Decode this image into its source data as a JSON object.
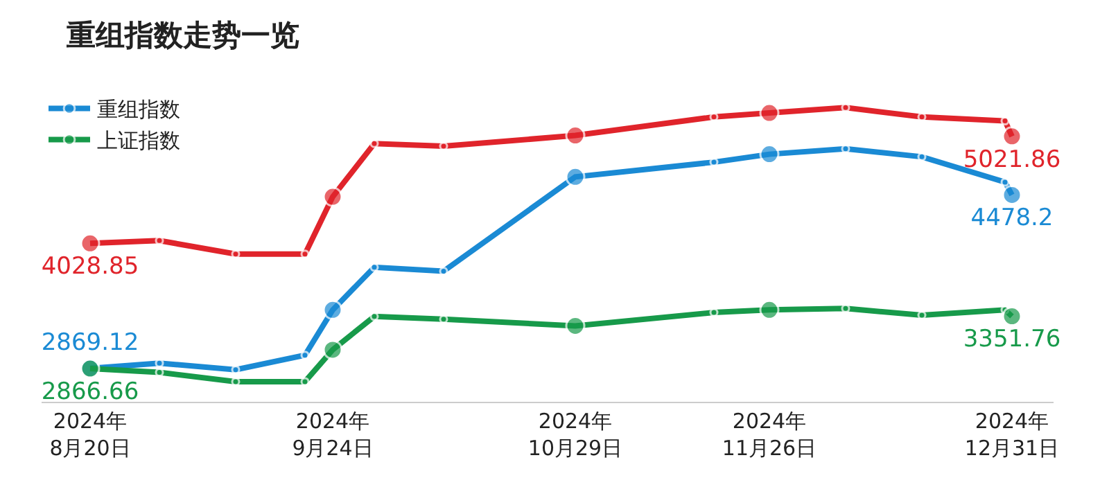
{
  "chart_data": {
    "type": "line",
    "title": "重组指数走势一览",
    "x": [
      "2024-08-20",
      "2024-08-30",
      "2024-09-10",
      "2024-09-20",
      "2024-09-24",
      "2024-09-30",
      "2024-10-10",
      "2024-10-29",
      "2024-11-18",
      "2024-11-26",
      "2024-12-07",
      "2024-12-18",
      "2024-12-30",
      "2024-12-31"
    ],
    "series": [
      {
        "name": "重组指数",
        "color": "#1a8ad4",
        "values": [
          2869.12,
          2917,
          2856,
          2991,
          3411,
          3807,
          3770,
          4646,
          4782,
          4856,
          4906,
          4832,
          4597,
          4478.2
        ],
        "value_labels": [
          "2869.12",
          null,
          null,
          null,
          null,
          null,
          null,
          null,
          null,
          null,
          null,
          null,
          null,
          "4478.2"
        ]
      },
      {
        "color": "#e0242b",
        "values": [
          4028.85,
          4054,
          3930,
          3930,
          4461,
          4955,
          4930,
          5030,
          5202,
          5239,
          5289,
          5202,
          5165,
          5021.86
        ],
        "value_labels": [
          "4028.85",
          null,
          null,
          null,
          null,
          null,
          null,
          null,
          null,
          null,
          null,
          null,
          null,
          "5021.86"
        ]
      },
      {
        "name": "上证指数",
        "color": "#179a4a",
        "values": [
          2866.66,
          2831,
          2745,
          2745,
          3041,
          3350,
          3325,
          3263,
          3387,
          3411,
          3424,
          3362,
          3411,
          3351.76
        ],
        "value_labels": [
          "2866.66",
          null,
          null,
          null,
          null,
          null,
          null,
          null,
          null,
          null,
          null,
          null,
          null,
          "3351.76"
        ]
      }
    ],
    "xlim": [
      "2024-08-13",
      "2025-01-06"
    ],
    "xticks": [
      {
        "value": "2024-08-20",
        "label": "2024年\n8月20日"
      },
      {
        "value": "2024-09-24",
        "label": "2024年\n9月24日"
      },
      {
        "value": "2024-10-29",
        "label": "2024年\n10月29日"
      },
      {
        "value": "2024-11-26",
        "label": "2024年\n11月26日"
      },
      {
        "value": "2024-12-31",
        "label": "2024年\n12月31日"
      }
    ],
    "tick_labels": "x",
    "grid": false,
    "legend": "top left",
    "marker": "circle",
    "line_style": "solid"
  }
}
